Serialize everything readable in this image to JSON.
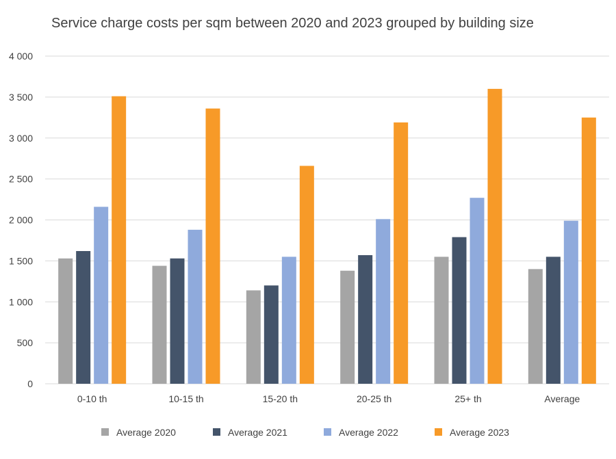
{
  "chart_data": {
    "type": "bar",
    "title": "Service charge costs per sqm between 2020 and 2023 grouped by building size",
    "xlabel": "",
    "ylabel": "",
    "ylim": [
      0,
      4000
    ],
    "yticks": [
      0,
      500,
      1000,
      1500,
      2000,
      2500,
      3000,
      3500,
      4000
    ],
    "ytick_labels": [
      "0",
      "500",
      "1 000",
      "1 500",
      "2 000",
      "2 500",
      "3 000",
      "3 500",
      "4 000"
    ],
    "categories": [
      "0-10 th",
      "10-15 th",
      "15-20 th",
      "20-25 th",
      "25+ th",
      "Average"
    ],
    "grid": true,
    "legend_position": "bottom",
    "series": [
      {
        "name": "Average 2020",
        "color": "#a5a5a5",
        "values": [
          1530,
          1440,
          1140,
          1380,
          1550,
          1400
        ]
      },
      {
        "name": "Average 2021",
        "color": "#44546a",
        "values": [
          1620,
          1530,
          1200,
          1570,
          1790,
          1550
        ]
      },
      {
        "name": "Average 2022",
        "color": "#8faadc",
        "values": [
          2160,
          1880,
          1550,
          2010,
          2270,
          1990
        ]
      },
      {
        "name": "Average 2023",
        "color": "#f79a28",
        "values": [
          3510,
          3360,
          2660,
          3190,
          3600,
          3250
        ]
      }
    ]
  }
}
